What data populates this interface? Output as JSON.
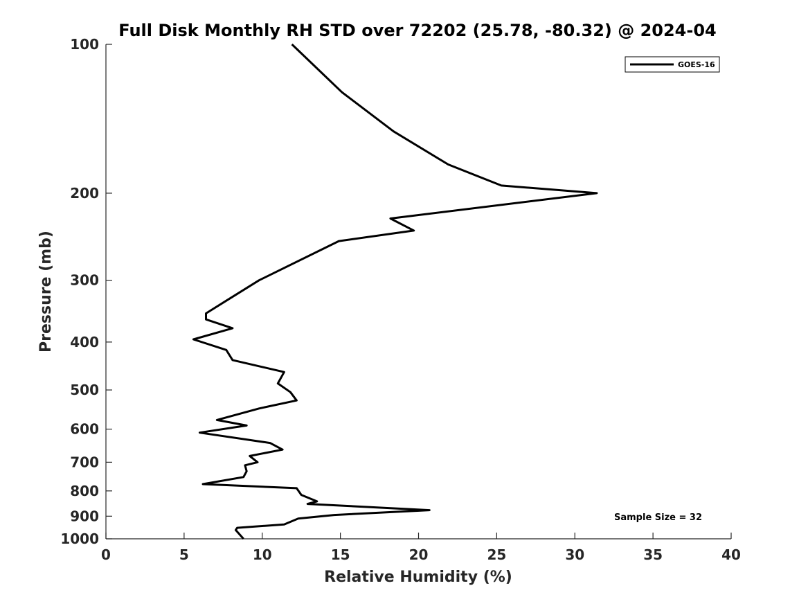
{
  "chart_data": {
    "type": "line",
    "title": "Full Disk Monthly RH STD over 72202 (25.78, -80.32) @ 2024-04",
    "xlabel": "Relative Humidity (%)",
    "ylabel": "Pressure (mb)",
    "xlim": [
      0,
      40
    ],
    "ylim": [
      100,
      1000
    ],
    "y_scale": "log",
    "y_reversed": true,
    "x_ticks": [
      0,
      5,
      10,
      15,
      20,
      25,
      30,
      35,
      40
    ],
    "y_ticks": [
      100,
      200,
      300,
      400,
      500,
      600,
      700,
      800,
      900,
      1000
    ],
    "grid": false,
    "legend_position": "top-right",
    "annotation": "Sample Size = 32",
    "series": [
      {
        "name": "GOES-16",
        "color": "#000000",
        "x": [
          11.9,
          15.1,
          18.4,
          21.9,
          25.3,
          31.4,
          18.2,
          19.7,
          14.9,
          9.8,
          7.7,
          6.4,
          6.4,
          8.1,
          5.6,
          7.7,
          8.1,
          11.4,
          11.0,
          11.8,
          12.2,
          9.8,
          7.1,
          9.0,
          6.0,
          10.5,
          11.3,
          9.2,
          9.7,
          8.9,
          9.0,
          8.8,
          6.2,
          12.2,
          12.5,
          13.5,
          12.9,
          20.7,
          14.6,
          12.3,
          11.4,
          8.4,
          8.3,
          8.8
        ],
        "y": [
          100,
          125,
          150,
          175,
          193,
          200,
          225,
          238,
          250,
          300,
          330,
          350,
          360,
          375,
          395,
          415,
          435,
          460,
          485,
          505,
          525,
          545,
          575,
          590,
          610,
          640,
          660,
          680,
          700,
          710,
          730,
          750,
          775,
          790,
          815,
          840,
          850,
          875,
          895,
          910,
          935,
          950,
          960,
          1000
        ]
      }
    ]
  }
}
